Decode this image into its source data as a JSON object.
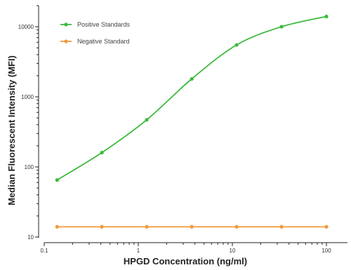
{
  "chart_data": {
    "type": "scatter",
    "title": "",
    "xlabel": "HPGD Concentration (ng/ml)",
    "ylabel": "Median Fluorescent Intensity (MFI)",
    "x_scale": "log",
    "y_scale": "log",
    "xlim": [
      0.1,
      100
    ],
    "ylim": [
      10,
      20000
    ],
    "x_ticks": [
      0.1,
      1,
      10,
      100
    ],
    "x_tick_labels": [
      "0.1",
      "1",
      "10",
      "100"
    ],
    "y_ticks": [
      10,
      100,
      1000,
      10000
    ],
    "y_tick_labels": [
      "10",
      "100",
      "1000",
      "10000"
    ],
    "grid": false,
    "legend_position": "top-left",
    "series": [
      {
        "name": "Positive Standards",
        "color": "#3cba3c",
        "fit": "sigmoidal",
        "x": [
          0.137,
          0.41,
          1.23,
          3.7,
          11.1,
          33.3,
          100
        ],
        "y": [
          65,
          160,
          470,
          1800,
          5500,
          10000,
          14000
        ]
      },
      {
        "name": "Negative Standard",
        "color": "#f39a3a",
        "fit": "flat",
        "x": [
          0.137,
          0.41,
          1.23,
          3.7,
          11.1,
          33.3,
          100
        ],
        "y": [
          14,
          14,
          14,
          14,
          14,
          14,
          14
        ]
      }
    ]
  }
}
